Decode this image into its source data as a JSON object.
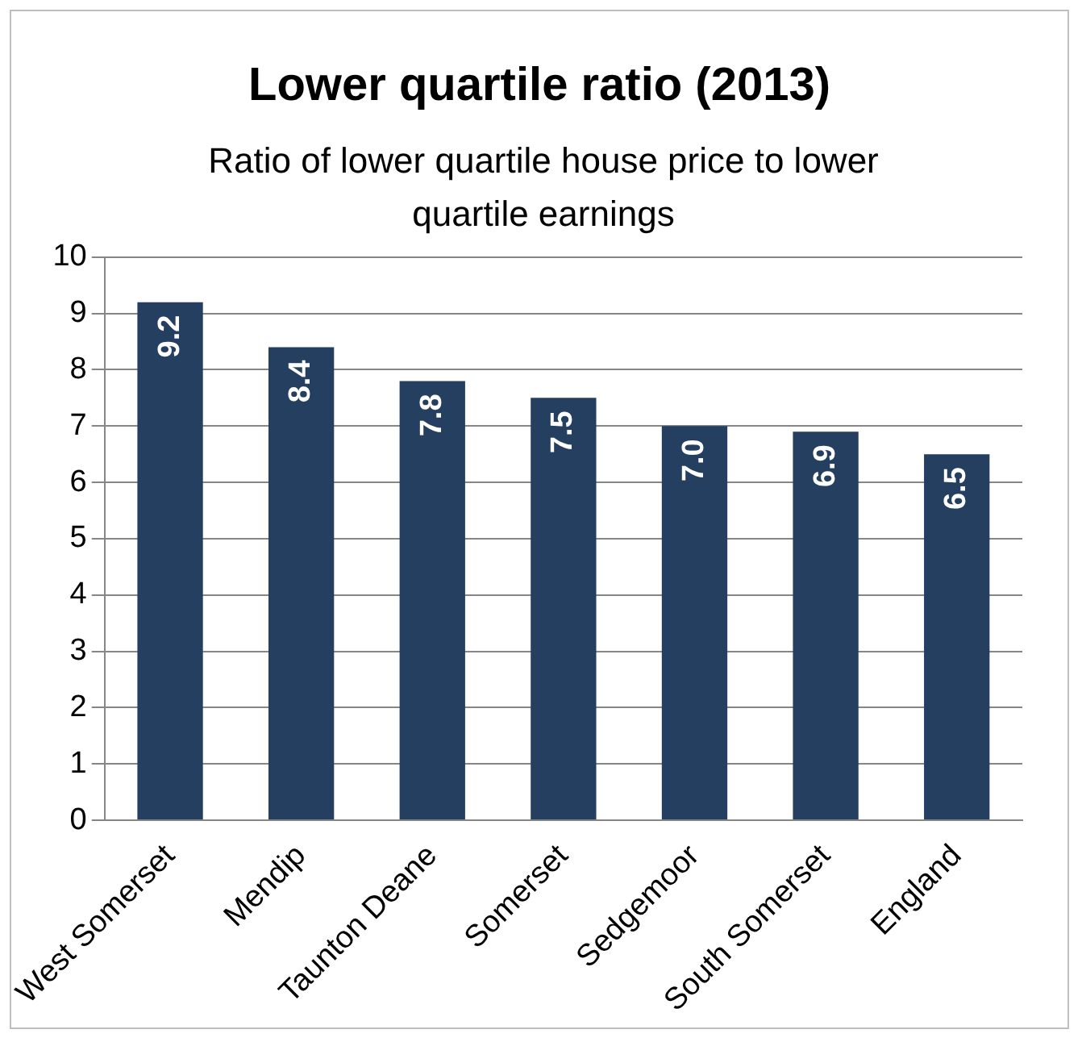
{
  "chart_data": {
    "type": "bar",
    "title": "Lower quartile ratio (2013)",
    "subtitle": "Ratio of lower quartile house price to lower quartile earnings",
    "categories": [
      "West Somerset",
      "Mendip",
      "Taunton Deane",
      "Somerset",
      "Sedgemoor",
      "South Somerset",
      "England"
    ],
    "values": [
      9.2,
      8.4,
      7.8,
      7.5,
      7.0,
      6.9,
      6.5
    ],
    "value_labels": [
      "9.2",
      "8.4",
      "7.8",
      "7.5",
      "7.0",
      "6.9",
      "6.5"
    ],
    "color": "#243f60",
    "ylim": [
      0,
      10
    ],
    "yticks": [
      0,
      1,
      2,
      3,
      4,
      5,
      6,
      7,
      8,
      9,
      10
    ],
    "grid": "y",
    "legend": false
  }
}
